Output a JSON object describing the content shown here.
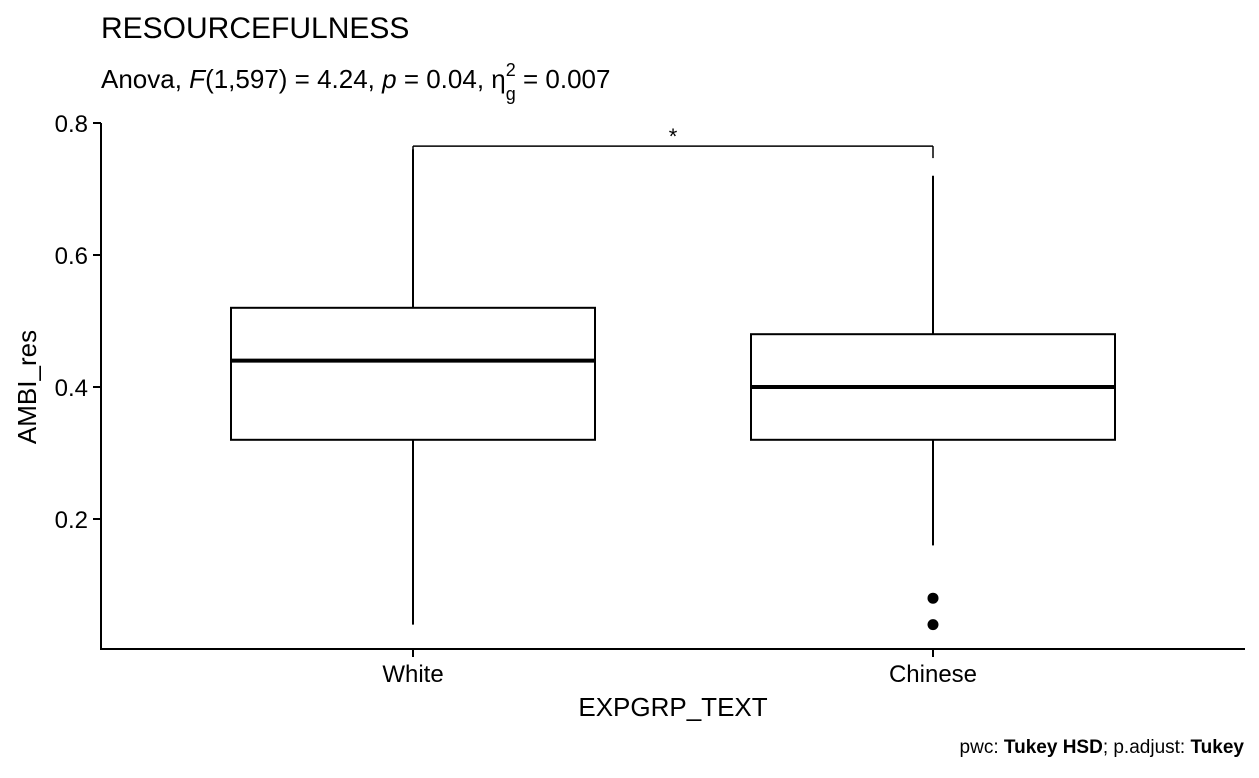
{
  "chart_data": {
    "type": "box",
    "title": "RESOURCEFULNESS",
    "subtitle": {
      "prefix": "Anova, ",
      "stat_letter": "F",
      "stat_args": "(1,597) = 4.24, ",
      "p_letter": "p",
      "p_value": " = 0.04, ",
      "eta": "η",
      "eta_sub": "g",
      "eta_sup": "2",
      "eta_value": " = 0.007"
    },
    "xlabel": "EXPGRP_TEXT",
    "ylabel": "AMBI_res",
    "yticks": [
      "0.2",
      "0.4",
      "0.6",
      "0.8"
    ],
    "ylim": [
      0.0,
      0.8
    ],
    "categories": [
      "White",
      "Chinese"
    ],
    "boxes": [
      {
        "name": "White",
        "whisker_low": 0.04,
        "q1": 0.32,
        "median": 0.44,
        "q3": 0.52,
        "whisker_high": 0.76,
        "outliers": []
      },
      {
        "name": "Chinese",
        "whisker_low": 0.16,
        "q1": 0.32,
        "median": 0.4,
        "q3": 0.48,
        "whisker_high": 0.72,
        "outliers": [
          0.08,
          0.04
        ]
      }
    ],
    "significance": {
      "from": "White",
      "to": "Chinese",
      "label": "*",
      "y": 0.765
    },
    "caption": {
      "pwc_label": "pwc: ",
      "pwc_method": "Tukey HSD",
      "adjust_label": "; p.adjust: ",
      "adjust_method": "Tukey"
    },
    "grid": false,
    "legend": "none"
  }
}
